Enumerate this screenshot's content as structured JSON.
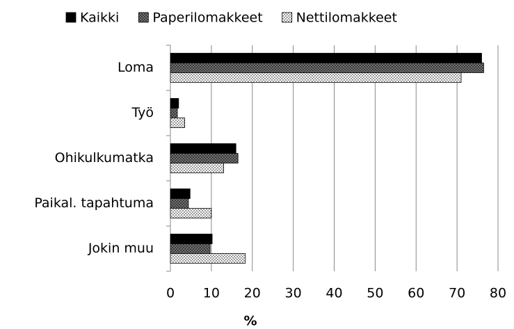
{
  "chart_data": {
    "type": "barh",
    "xlabel": "%",
    "categories": [
      "Loma",
      "Työ",
      "Ohikulkumatka",
      "Paikal. tapahtuma",
      "Jokin muu"
    ],
    "series": [
      {
        "name": "Kaikki",
        "color": "#000000",
        "pattern": "solid",
        "values": [
          76,
          2,
          16,
          4.8,
          10.2
        ]
      },
      {
        "name": "Paperilomakkeet",
        "color": "#555555",
        "pattern": "crosshatch",
        "values": [
          76.5,
          1.7,
          16.5,
          4.4,
          9.7
        ]
      },
      {
        "name": "Nettilomakkeet",
        "color": "#000000",
        "pattern": "dots",
        "values": [
          71,
          3.5,
          13,
          10,
          18.3
        ]
      }
    ],
    "xlim": [
      0,
      80
    ],
    "xticks": [
      0,
      10,
      20,
      30,
      40,
      50,
      60,
      70,
      80
    ],
    "grid": true,
    "legend": "top"
  }
}
